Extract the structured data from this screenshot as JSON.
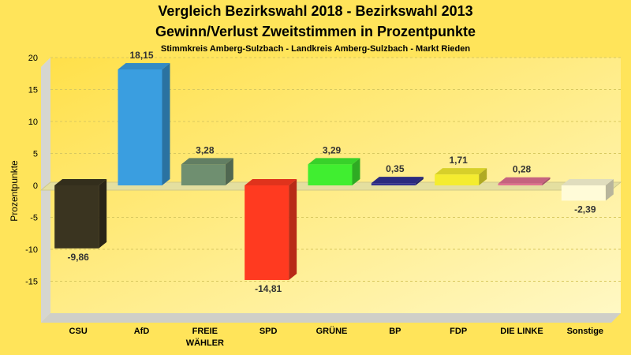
{
  "chart_data": {
    "type": "bar",
    "title_line1": "Vergleich Bezirkswahl 2018 - Bezirkswahl 2013",
    "title_line2": "Gewinn/Verlust Zweitstimmen in Prozentpunkte",
    "subtitle": "Stimmkreis Amberg-Sulzbach - Landkreis Amberg-Sulzbach - Markt Rieden",
    "ylabel": "Prozentpunkte",
    "xlabel": "",
    "ylim": [
      -20,
      20
    ],
    "yticks": [
      20,
      15,
      10,
      5,
      0,
      -5,
      -10,
      -15
    ],
    "grid": true,
    "legend": "none",
    "categories": [
      [
        "CSU"
      ],
      [
        "AfD"
      ],
      [
        "FREIE",
        "WÄHLER"
      ],
      [
        "SPD"
      ],
      [
        "GRÜNE"
      ],
      [
        "BP"
      ],
      [
        "FDP"
      ],
      [
        "DIE LINKE"
      ],
      [
        "Sonstige"
      ]
    ],
    "values": [
      -9.86,
      18.15,
      3.28,
      -14.81,
      3.29,
      0.35,
      1.71,
      0.28,
      -2.39
    ],
    "value_labels": [
      "-9,86",
      "18,15",
      "3,28",
      "-14,81",
      "3,29",
      "0,35",
      "1,71",
      "0,28",
      "-2,39"
    ],
    "colors": [
      "#3a3420",
      "#3a9ee0",
      "#6f8f70",
      "#ff3a20",
      "#40ee30",
      "#303090",
      "#f4ec30",
      "#e07090",
      "#fffbd8"
    ]
  }
}
